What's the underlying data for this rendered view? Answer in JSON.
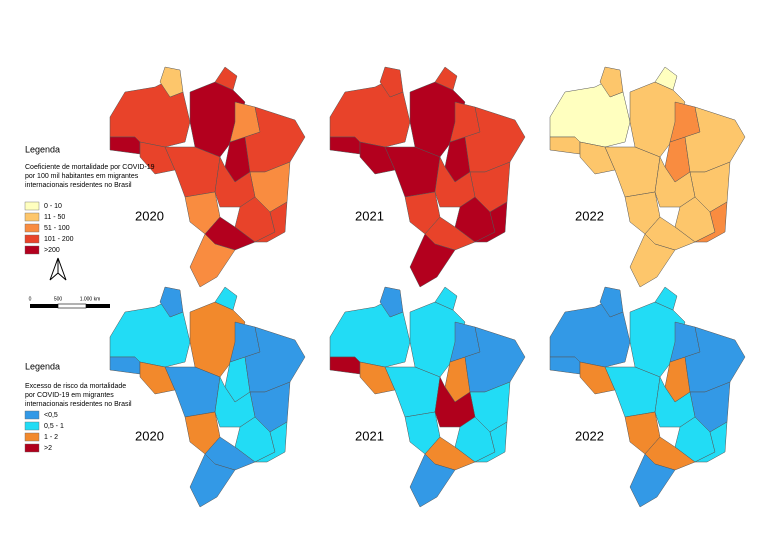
{
  "legend_mortality": {
    "title": "Legenda",
    "description": [
      "Coeficiente de mortalidade por COVID-19",
      "por 100 mil habitantes em migrantes",
      "internacionais residentes no Brasil"
    ],
    "items": [
      {
        "label": "0 - 10",
        "color": "#ffffbf"
      },
      {
        "label": "11 - 50",
        "color": "#fdc66b"
      },
      {
        "label": "51 - 100",
        "color": "#f98c40"
      },
      {
        "label": "101 - 200",
        "color": "#e8432a"
      },
      {
        "label": ">200",
        "color": "#b3001e"
      }
    ]
  },
  "legend_excess": {
    "title": "Legenda",
    "description": [
      "Excesso de risco da mortalidade",
      "por COVID-19 em migrantes",
      "internacionais residentes no Brasil"
    ],
    "items": [
      {
        "label": "<0,5",
        "color": "#3399e6"
      },
      {
        "label": "0,5 - 1",
        "color": "#22dcf5"
      },
      {
        "label": "1 - 2",
        "color": "#f2892c"
      },
      {
        "label": ">2",
        "color": "#b0001c"
      }
    ]
  },
  "maps_mortality": [
    {
      "year": "2020"
    },
    {
      "year": "2021"
    },
    {
      "year": "2022"
    }
  ],
  "maps_excess": [
    {
      "year": "2020"
    },
    {
      "year": "2021"
    },
    {
      "year": "2022"
    }
  ],
  "scale_bar": {
    "labels": [
      "0",
      "500",
      "1.000 km"
    ]
  }
}
